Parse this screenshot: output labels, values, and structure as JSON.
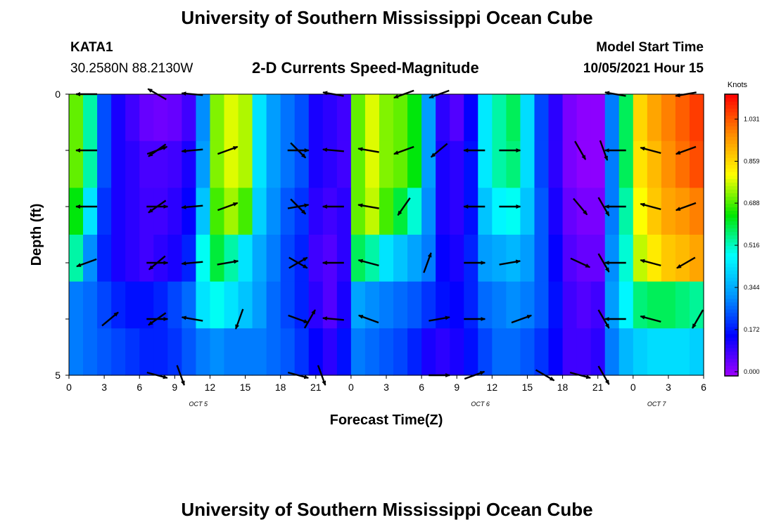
{
  "header": {
    "title_top": "University of Southern Mississippi Ocean Cube",
    "title_bottom": "University of Southern Mississippi Ocean Cube",
    "station": "KATA1",
    "coords": "30.2580N  88.2130W",
    "plot_title": "2-D Currents Speed-Magnitude",
    "model_label": "Model Start Time",
    "model_time": "10/05/2021 Hour 15"
  },
  "chart_data": {
    "type": "heatmap",
    "title": "2-D Currents Speed-Magnitude",
    "xlabel": "Forecast Time(Z)",
    "ylabel": "Depth (ft)",
    "x_ticks": [
      "0",
      "3",
      "6",
      "9",
      "12",
      "15",
      "18",
      "21",
      "0",
      "3",
      "6",
      "9",
      "12",
      "15",
      "18",
      "21",
      "0",
      "3",
      "6"
    ],
    "x_hours_range": [
      0,
      54
    ],
    "date_labels": [
      {
        "label": "OCT 5",
        "hour": 11
      },
      {
        "label": "OCT 6",
        "hour": 35
      },
      {
        "label": "OCT 7",
        "hour": 50
      }
    ],
    "y_ticks": [
      "0",
      "5"
    ],
    "ylim": [
      0,
      5
    ],
    "depth_levels": 5,
    "colorbar": {
      "unit": "Knots",
      "ticks": [
        "0.000",
        "0.172",
        "0.344",
        "0.516",
        "0.688",
        "0.859",
        "1.031"
      ],
      "min": 0.0,
      "max": 1.15,
      "colors": [
        "#a000ff",
        "#0000ff",
        "#0096ff",
        "#00ffff",
        "#00e600",
        "#ffff00",
        "#ff8c00",
        "#ff0000"
      ]
    },
    "speed_columns_by_layer": [
      [
        0.72,
        0.55,
        0.25,
        0.14,
        0.1,
        0.06,
        0.05,
        0.06,
        0.1,
        0.32,
        0.74,
        0.8,
        0.77,
        0.45,
        0.34,
        0.29,
        0.25,
        0.14,
        0.12,
        0.1,
        0.72,
        0.8,
        0.74,
        0.72,
        0.65,
        0.34,
        0.12,
        0.08,
        0.16,
        0.46,
        0.55,
        0.6,
        0.44,
        0.24,
        0.12,
        0.04,
        0.02,
        0.02,
        0.3,
        0.6,
        0.88,
        0.95,
        1.0,
        1.04,
        1.08
      ],
      [
        0.72,
        0.55,
        0.25,
        0.14,
        0.12,
        0.09,
        0.09,
        0.1,
        0.14,
        0.34,
        0.74,
        0.8,
        0.77,
        0.45,
        0.34,
        0.29,
        0.25,
        0.14,
        0.12,
        0.1,
        0.72,
        0.8,
        0.74,
        0.72,
        0.65,
        0.34,
        0.14,
        0.12,
        0.18,
        0.46,
        0.55,
        0.58,
        0.44,
        0.24,
        0.12,
        0.04,
        0.02,
        0.02,
        0.3,
        0.6,
        0.86,
        0.92,
        0.98,
        1.02,
        1.06
      ],
      [
        0.65,
        0.45,
        0.22,
        0.14,
        0.12,
        0.1,
        0.1,
        0.12,
        0.16,
        0.4,
        0.7,
        0.76,
        0.7,
        0.42,
        0.32,
        0.26,
        0.22,
        0.12,
        0.1,
        0.12,
        0.72,
        0.78,
        0.7,
        0.62,
        0.52,
        0.32,
        0.14,
        0.12,
        0.18,
        0.4,
        0.48,
        0.5,
        0.4,
        0.26,
        0.14,
        0.06,
        0.04,
        0.04,
        0.3,
        0.55,
        0.82,
        0.9,
        0.95,
        0.97,
        1.0
      ],
      [
        0.55,
        0.32,
        0.2,
        0.14,
        0.12,
        0.1,
        0.12,
        0.14,
        0.2,
        0.5,
        0.62,
        0.55,
        0.45,
        0.36,
        0.3,
        0.24,
        0.2,
        0.1,
        0.08,
        0.12,
        0.6,
        0.55,
        0.45,
        0.4,
        0.35,
        0.3,
        0.16,
        0.14,
        0.2,
        0.34,
        0.36,
        0.38,
        0.34,
        0.26,
        0.16,
        0.08,
        0.06,
        0.06,
        0.32,
        0.52,
        0.78,
        0.85,
        0.9,
        0.92,
        0.95
      ],
      [
        0.3,
        0.28,
        0.24,
        0.2,
        0.18,
        0.18,
        0.2,
        0.24,
        0.28,
        0.45,
        0.5,
        0.45,
        0.4,
        0.34,
        0.28,
        0.24,
        0.2,
        0.12,
        0.08,
        0.14,
        0.35,
        0.32,
        0.3,
        0.28,
        0.26,
        0.22,
        0.18,
        0.16,
        0.2,
        0.28,
        0.3,
        0.32,
        0.3,
        0.26,
        0.18,
        0.1,
        0.08,
        0.1,
        0.34,
        0.48,
        0.58,
        0.6,
        0.6,
        0.58,
        0.56
      ],
      [
        0.3,
        0.28,
        0.26,
        0.24,
        0.22,
        0.2,
        0.2,
        0.22,
        0.26,
        0.3,
        0.32,
        0.3,
        0.3,
        0.3,
        0.28,
        0.26,
        0.22,
        0.16,
        0.12,
        0.18,
        0.3,
        0.28,
        0.26,
        0.24,
        0.2,
        0.14,
        0.12,
        0.14,
        0.18,
        0.24,
        0.28,
        0.28,
        0.26,
        0.22,
        0.16,
        0.1,
        0.1,
        0.12,
        0.3,
        0.38,
        0.42,
        0.44,
        0.44,
        0.44,
        0.42
      ]
    ],
    "vectors": [
      {
        "h": 1.5,
        "d": 0,
        "dir": 180
      },
      {
        "h": 7.5,
        "d": 0,
        "dir": 150
      },
      {
        "h": 10.5,
        "d": 0,
        "dir": 175
      },
      {
        "h": 22.5,
        "d": 0,
        "dir": 170
      },
      {
        "h": 28.5,
        "d": 0,
        "dir": 200
      },
      {
        "h": 31.5,
        "d": 0,
        "dir": 200
      },
      {
        "h": 46.5,
        "d": 0,
        "dir": 170
      },
      {
        "h": 52.5,
        "d": 0,
        "dir": 190
      },
      {
        "h": 1.5,
        "d": 1,
        "dir": 180
      },
      {
        "h": 7.5,
        "d": 1,
        "dir": 20
      },
      {
        "h": 7.5,
        "d": 1,
        "dir": 215
      },
      {
        "h": 10.5,
        "d": 1,
        "dir": 185
      },
      {
        "h": 13.5,
        "d": 1,
        "dir": 20
      },
      {
        "h": 19.5,
        "d": 1,
        "dir": 315
      },
      {
        "h": 19.5,
        "d": 1,
        "dir": 0
      },
      {
        "h": 22.5,
        "d": 1,
        "dir": 175
      },
      {
        "h": 25.5,
        "d": 1,
        "dir": 170
      },
      {
        "h": 28.5,
        "d": 1,
        "dir": 200
      },
      {
        "h": 31.5,
        "d": 1,
        "dir": 220
      },
      {
        "h": 34.5,
        "d": 1,
        "dir": 180
      },
      {
        "h": 37.5,
        "d": 1,
        "dir": 0
      },
      {
        "h": 43.5,
        "d": 1,
        "dir": 300
      },
      {
        "h": 45.5,
        "d": 1,
        "dir": 290
      },
      {
        "h": 46.5,
        "d": 1,
        "dir": 180
      },
      {
        "h": 49.5,
        "d": 1,
        "dir": 165
      },
      {
        "h": 52.5,
        "d": 1,
        "dir": 200
      },
      {
        "h": 1.5,
        "d": 2,
        "dir": 180
      },
      {
        "h": 7.5,
        "d": 2,
        "dir": 0
      },
      {
        "h": 7.5,
        "d": 2,
        "dir": 215
      },
      {
        "h": 10.5,
        "d": 2,
        "dir": 185
      },
      {
        "h": 13.5,
        "d": 2,
        "dir": 20
      },
      {
        "h": 19.5,
        "d": 2,
        "dir": 315
      },
      {
        "h": 19.5,
        "d": 2,
        "dir": 10
      },
      {
        "h": 22.5,
        "d": 2,
        "dir": 180
      },
      {
        "h": 25.5,
        "d": 2,
        "dir": 170
      },
      {
        "h": 28.5,
        "d": 2,
        "dir": 235
      },
      {
        "h": 34.5,
        "d": 2,
        "dir": 180
      },
      {
        "h": 37.5,
        "d": 2,
        "dir": 0
      },
      {
        "h": 43.5,
        "d": 2,
        "dir": 310
      },
      {
        "h": 45.5,
        "d": 2,
        "dir": 300
      },
      {
        "h": 46.5,
        "d": 2,
        "dir": 180
      },
      {
        "h": 49.5,
        "d": 2,
        "dir": 165
      },
      {
        "h": 52.5,
        "d": 2,
        "dir": 200
      },
      {
        "h": 1.5,
        "d": 3,
        "dir": 200
      },
      {
        "h": 7.5,
        "d": 3,
        "dir": 0
      },
      {
        "h": 7.5,
        "d": 3,
        "dir": 220
      },
      {
        "h": 10.5,
        "d": 3,
        "dir": 185
      },
      {
        "h": 13.5,
        "d": 3,
        "dir": 10
      },
      {
        "h": 19.5,
        "d": 3,
        "dir": 330
      },
      {
        "h": 19.5,
        "d": 3,
        "dir": 30
      },
      {
        "h": 22.5,
        "d": 3,
        "dir": 180
      },
      {
        "h": 25.5,
        "d": 3,
        "dir": 165
      },
      {
        "h": 30.5,
        "d": 3,
        "dir": 70
      },
      {
        "h": 34.5,
        "d": 3,
        "dir": 0
      },
      {
        "h": 37.5,
        "d": 3,
        "dir": 10
      },
      {
        "h": 43.5,
        "d": 3,
        "dir": 335
      },
      {
        "h": 45.5,
        "d": 3,
        "dir": 300
      },
      {
        "h": 46.5,
        "d": 3,
        "dir": 180
      },
      {
        "h": 49.5,
        "d": 3,
        "dir": 165
      },
      {
        "h": 52.5,
        "d": 3,
        "dir": 210
      },
      {
        "h": 3.5,
        "d": 4,
        "dir": 40
      },
      {
        "h": 7.5,
        "d": 4,
        "dir": 0
      },
      {
        "h": 7.5,
        "d": 4,
        "dir": 215
      },
      {
        "h": 10.5,
        "d": 4,
        "dir": 170
      },
      {
        "h": 14.5,
        "d": 4,
        "dir": 250
      },
      {
        "h": 19.5,
        "d": 4,
        "dir": 340
      },
      {
        "h": 20.5,
        "d": 4,
        "dir": 60
      },
      {
        "h": 22.5,
        "d": 4,
        "dir": 175
      },
      {
        "h": 25.5,
        "d": 4,
        "dir": 160
      },
      {
        "h": 31.5,
        "d": 4,
        "dir": 10
      },
      {
        "h": 34.5,
        "d": 4,
        "dir": 0
      },
      {
        "h": 38.5,
        "d": 4,
        "dir": 20
      },
      {
        "h": 45.5,
        "d": 4,
        "dir": 300
      },
      {
        "h": 46.5,
        "d": 4,
        "dir": 180
      },
      {
        "h": 49.5,
        "d": 4,
        "dir": 165
      },
      {
        "h": 53.5,
        "d": 4,
        "dir": 240
      },
      {
        "h": 7.5,
        "d": 5,
        "dir": 345
      },
      {
        "h": 9.5,
        "d": 5,
        "dir": 290
      },
      {
        "h": 19.5,
        "d": 5,
        "dir": 345
      },
      {
        "h": 21.5,
        "d": 5,
        "dir": 290
      },
      {
        "h": 31.5,
        "d": 5,
        "dir": 0
      },
      {
        "h": 34.5,
        "d": 5,
        "dir": 20
      },
      {
        "h": 40.5,
        "d": 5,
        "dir": 330
      },
      {
        "h": 43.5,
        "d": 5,
        "dir": 345
      },
      {
        "h": 45.5,
        "d": 5,
        "dir": 300
      }
    ]
  }
}
